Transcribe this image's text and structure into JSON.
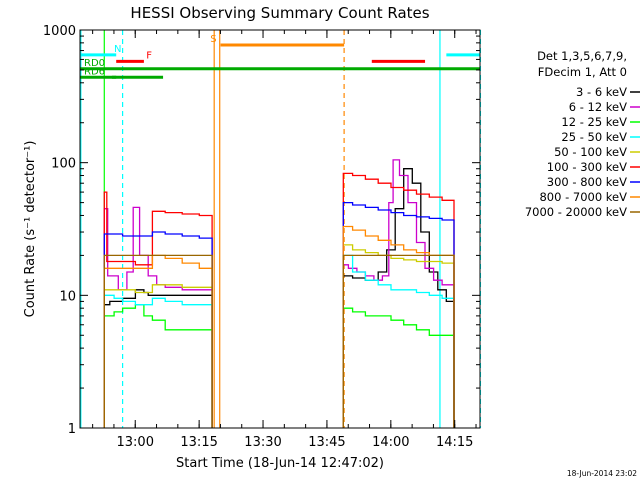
{
  "chart_data": {
    "type": "line",
    "title": "HESSI Observing Summary Count Rates",
    "xlabel": "Start Time (18-Jun-14 12:47:02)",
    "ylabel": "Count Rate (s⁻¹ detector⁻¹)",
    "y_scale": "log",
    "ylim": [
      1,
      1000
    ],
    "xlim_minutes_after_12_47_02": [
      0,
      93.9
    ],
    "x_tick_labels": [
      "13:00",
      "13:15",
      "13:30",
      "13:45",
      "14:00",
      "14:15"
    ],
    "y_tick_labels": [
      "1",
      "10",
      "100",
      "1000"
    ],
    "legend_header": [
      "Det 1,3,5,6,7,9,",
      "FDecim 1, Att 0"
    ],
    "legend_position": "right",
    "footer_date": "18-Jun-2014 23:02",
    "series": [
      {
        "name": "3 - 6 keV",
        "color": "#000000",
        "segments": [
          [
            [
              5.7,
              8.5
            ],
            [
              7,
              9
            ],
            [
              10,
              9.5
            ],
            [
              13,
              11
            ],
            [
              15,
              10.5
            ],
            [
              16,
              10
            ],
            [
              20,
              10
            ],
            [
              24,
              10
            ],
            [
              28,
              10
            ],
            [
              31,
              10
            ]
          ],
          [
            [
              61.8,
              14
            ],
            [
              64,
              13.5
            ],
            [
              67,
              13
            ],
            [
              70,
              15
            ],
            [
              72,
              22
            ],
            [
              74,
              45
            ],
            [
              76,
              90
            ],
            [
              78,
              70
            ],
            [
              80,
              30
            ],
            [
              82,
              15
            ],
            [
              84,
              11
            ],
            [
              86,
              9
            ],
            [
              87.8,
              8.5
            ]
          ]
        ]
      },
      {
        "name": "6 - 12 keV",
        "color": "#cc00cc",
        "segments": [
          [
            [
              5.7,
              45
            ],
            [
              6.5,
              14
            ],
            [
              9,
              11
            ],
            [
              11,
              15
            ],
            [
              12.5,
              46
            ],
            [
              14,
              20
            ],
            [
              16,
              14
            ],
            [
              18,
              12
            ],
            [
              20,
              11.5
            ],
            [
              24,
              11
            ],
            [
              28,
              11
            ],
            [
              31,
              11
            ]
          ],
          [
            [
              61.8,
              17
            ],
            [
              63,
              16
            ],
            [
              65,
              15
            ],
            [
              67,
              14
            ],
            [
              69,
              13
            ],
            [
              71,
              14
            ],
            [
              72.5,
              50
            ],
            [
              73.5,
              105
            ],
            [
              75,
              80
            ],
            [
              77,
              50
            ],
            [
              79,
              25
            ],
            [
              81,
              16
            ],
            [
              83,
              13
            ],
            [
              85,
              12
            ],
            [
              87.8,
              12
            ]
          ]
        ]
      },
      {
        "name": "12 - 25 keV",
        "color": "#00ff00",
        "segments": [
          [
            [
              5.7,
              7
            ],
            [
              8,
              7.5
            ],
            [
              10,
              8
            ],
            [
              13,
              8.5
            ],
            [
              15,
              7
            ],
            [
              17,
              6.5
            ],
            [
              20,
              5.5
            ],
            [
              24,
              5.5
            ],
            [
              28,
              5.5
            ],
            [
              31,
              5.5
            ]
          ],
          [
            [
              61.8,
              8
            ],
            [
              64,
              7.5
            ],
            [
              67,
              7
            ],
            [
              70,
              7
            ],
            [
              73,
              6.5
            ],
            [
              76,
              6
            ],
            [
              79,
              5.5
            ],
            [
              82,
              5
            ],
            [
              85,
              5
            ],
            [
              87.8,
              5
            ]
          ]
        ]
      },
      {
        "name": "25 - 50 keV",
        "color": "#00ffff",
        "segments": [
          [
            [
              5.7,
              10
            ],
            [
              8,
              9.5
            ],
            [
              10,
              9
            ],
            [
              13,
              8.5
            ],
            [
              15,
              8.5
            ],
            [
              17,
              9.5
            ],
            [
              20,
              9
            ],
            [
              24,
              8.5
            ],
            [
              28,
              8.5
            ],
            [
              31,
              8.5
            ]
          ],
          [
            [
              61.8,
              20
            ],
            [
              64,
              15
            ],
            [
              67,
              13
            ],
            [
              70,
              12
            ],
            [
              73,
              11
            ],
            [
              76,
              11
            ],
            [
              79,
              10.5
            ],
            [
              82,
              10
            ],
            [
              85,
              9.5
            ],
            [
              87.8,
              9.5
            ]
          ]
        ]
      },
      {
        "name": "50 - 100 keV",
        "color": "#cccc00",
        "segments": [
          [
            [
              5.7,
              11
            ],
            [
              8,
              11
            ],
            [
              10,
              11
            ],
            [
              13,
              10.5
            ],
            [
              15,
              10.5
            ],
            [
              17,
              12
            ],
            [
              20,
              12
            ],
            [
              24,
              11.5
            ],
            [
              28,
              11.5
            ],
            [
              31,
              11.5
            ]
          ],
          [
            [
              61.8,
              24
            ],
            [
              64,
              22
            ],
            [
              67,
              21
            ],
            [
              70,
              20
            ],
            [
              73,
              19
            ],
            [
              76,
              18.5
            ],
            [
              79,
              18
            ],
            [
              82,
              18
            ],
            [
              85,
              17.5
            ],
            [
              87.8,
              17.5
            ]
          ]
        ]
      },
      {
        "name": "100 - 300 keV",
        "color": "#ff0000",
        "segments": [
          [
            [
              5.7,
              60
            ],
            [
              6.3,
              18
            ],
            [
              8,
              18
            ],
            [
              10,
              18
            ],
            [
              13,
              17
            ],
            [
              15,
              17
            ],
            [
              17,
              43
            ],
            [
              20,
              42
            ],
            [
              24,
              41
            ],
            [
              28,
              40
            ],
            [
              31,
              40
            ]
          ],
          [
            [
              61.8,
              83
            ],
            [
              64,
              80
            ],
            [
              67,
              75
            ],
            [
              70,
              70
            ],
            [
              73,
              65
            ],
            [
              76,
              62
            ],
            [
              79,
              58
            ],
            [
              82,
              55
            ],
            [
              85,
              52
            ],
            [
              87.8,
              52
            ]
          ]
        ]
      },
      {
        "name": "300 - 800 keV",
        "color": "#0000ff",
        "segments": [
          [
            [
              5.7,
              29
            ],
            [
              8,
              29
            ],
            [
              10,
              28
            ],
            [
              13,
              28
            ],
            [
              15,
              28
            ],
            [
              17,
              30
            ],
            [
              20,
              29
            ],
            [
              24,
              28
            ],
            [
              28,
              27
            ],
            [
              31,
              27
            ]
          ],
          [
            [
              61.8,
              50
            ],
            [
              64,
              48
            ],
            [
              67,
              46
            ],
            [
              70,
              44
            ],
            [
              73,
              42
            ],
            [
              76,
              40
            ],
            [
              79,
              39
            ],
            [
              82,
              38
            ],
            [
              85,
              37
            ],
            [
              87.8,
              36
            ]
          ]
        ]
      },
      {
        "name": "800 - 7000 keV",
        "color": "#ff8800",
        "segments": [
          [
            [
              5.7,
              16
            ],
            [
              8,
              16
            ],
            [
              10,
              16
            ],
            [
              13,
              16
            ],
            [
              15,
              16
            ],
            [
              17,
              20
            ],
            [
              20,
              19
            ],
            [
              24,
              17.5
            ],
            [
              28,
              16
            ],
            [
              31,
              15.5
            ]
          ],
          [
            [
              61.8,
              33
            ],
            [
              64,
              31
            ],
            [
              67,
              28
            ],
            [
              70,
              26
            ],
            [
              73,
              24
            ],
            [
              76,
              22
            ],
            [
              79,
              21
            ],
            [
              82,
              20
            ],
            [
              85,
              20
            ],
            [
              87.8,
              19
            ]
          ]
        ]
      },
      {
        "name": "7000 - 20000 keV",
        "color": "#996600",
        "segments": [
          [
            [
              5.7,
              20
            ],
            [
              8,
              20
            ],
            [
              10,
              20
            ],
            [
              13,
              20
            ],
            [
              15,
              20
            ],
            [
              17,
              20
            ],
            [
              20,
              20
            ],
            [
              24,
              20
            ],
            [
              28,
              20
            ],
            [
              31,
              20
            ]
          ],
          [
            [
              61.8,
              20
            ],
            [
              64,
              20
            ],
            [
              67,
              20
            ],
            [
              70,
              20
            ],
            [
              73,
              20
            ],
            [
              76,
              20
            ],
            [
              79,
              20
            ],
            [
              82,
              20
            ],
            [
              85,
              20
            ],
            [
              87.8,
              20
            ]
          ]
        ]
      }
    ],
    "flag_bars": [
      {
        "label": "N",
        "color": "#00ffff",
        "y_value": 650,
        "ranges": [
          [
            0,
            8.5
          ],
          [
            86,
            93.9
          ]
        ]
      },
      {
        "label": "F",
        "color": "#ff0000",
        "y_value": 580,
        "ranges": [
          [
            8.5,
            15
          ],
          [
            68.5,
            81
          ]
        ]
      },
      {
        "label": "RD0",
        "color": "#00aa00",
        "y_value": 510,
        "ranges": [
          [
            0,
            93.9
          ]
        ]
      },
      {
        "label": "RD6",
        "color": "#00aa00",
        "y_value": 440,
        "ranges": [
          [
            0,
            8.5
          ],
          [
            7.5,
            19.5
          ]
        ]
      },
      {
        "label": "S",
        "color": "#ff8800",
        "y_value": 770,
        "ranges": [
          [
            33,
            62
          ]
        ]
      }
    ],
    "vertical_markers": [
      {
        "color": "#00ffff",
        "style": "solid",
        "x": 0.2
      },
      {
        "color": "#00ffff",
        "style": "dashed",
        "x": 10
      },
      {
        "color": "#00ff00",
        "style": "solid",
        "x": 5.7
      },
      {
        "color": "#ff8800",
        "style": "solid",
        "x": 31.5
      },
      {
        "color": "#ff8800",
        "style": "solid",
        "x": 32.8
      },
      {
        "color": "#ff8800",
        "style": "dashed",
        "x": 62
      },
      {
        "color": "#00ffff",
        "style": "solid",
        "x": 84.5
      },
      {
        "color": "#00ffff",
        "style": "dashed",
        "x": 94
      }
    ]
  }
}
